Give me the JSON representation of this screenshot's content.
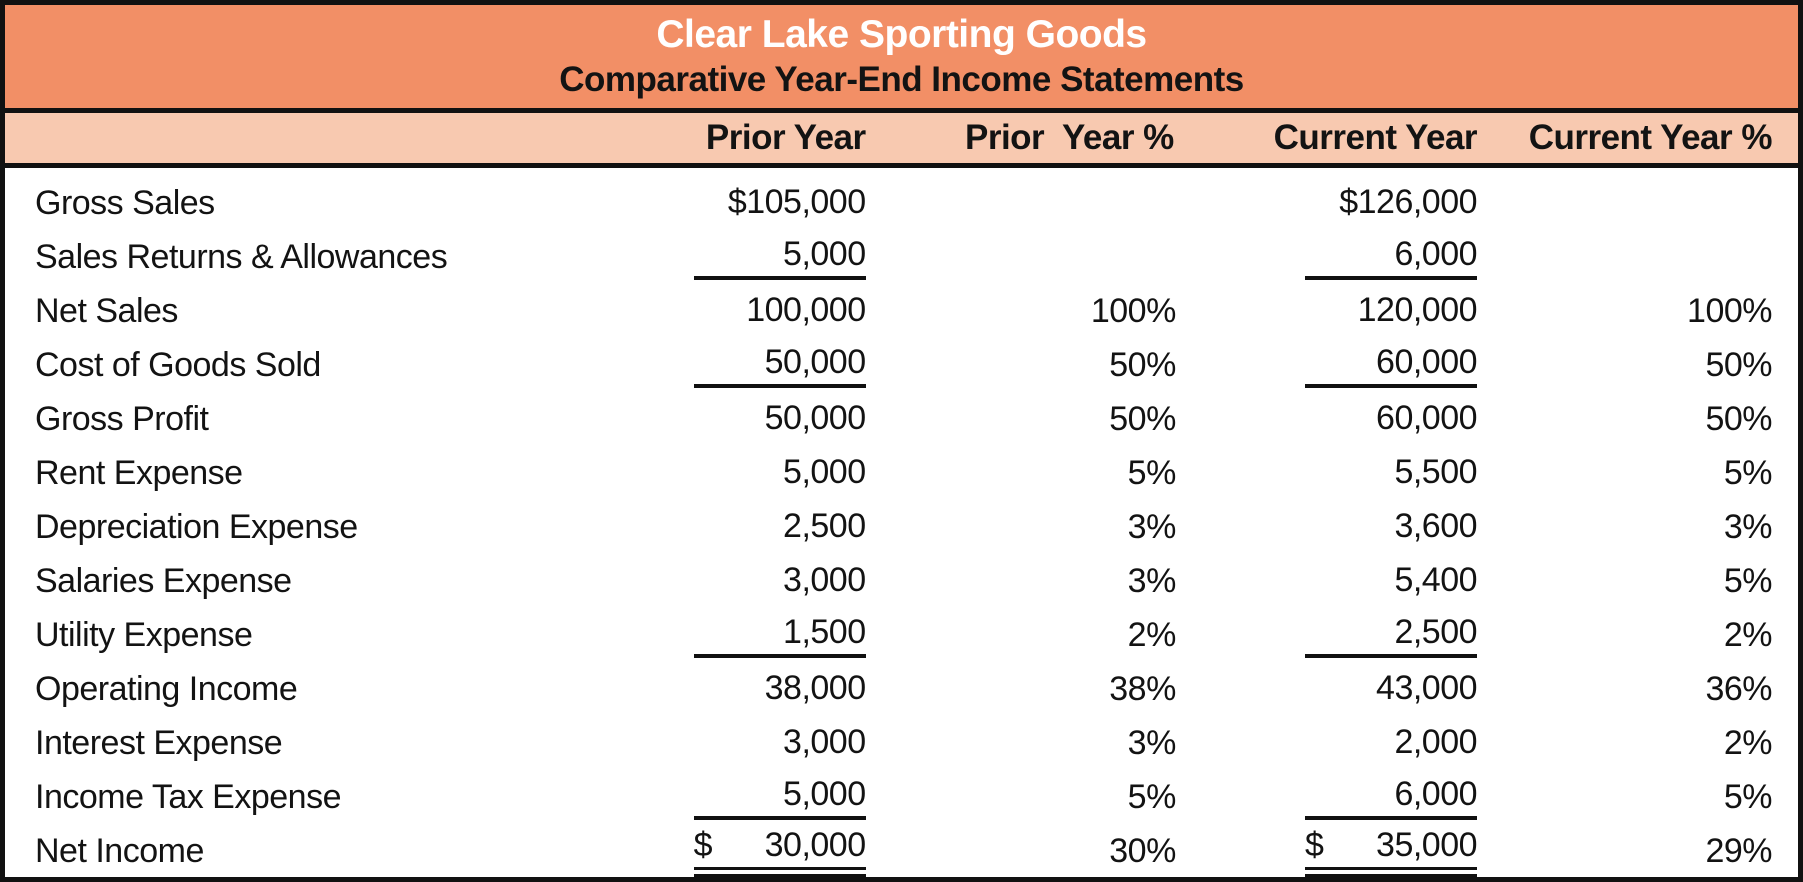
{
  "header": {
    "title": "Clear Lake Sporting Goods",
    "subtitle": "Comparative Year-End Income Statements"
  },
  "columns": {
    "prior": "Prior Year",
    "prior_pct": "Prior  Year %",
    "current": "Current Year",
    "current_pct": "Current Year %"
  },
  "rows": [
    {
      "label": "Gross Sales",
      "prior": "$105,000",
      "prior_pct": "",
      "current": "$126,000",
      "current_pct": "",
      "underline": "none"
    },
    {
      "label": "Sales Returns & Allowances",
      "prior": "5,000",
      "prior_pct": "",
      "current": "6,000",
      "current_pct": "",
      "underline": "single"
    },
    {
      "label": "Net Sales",
      "prior": "100,000",
      "prior_pct": "100%",
      "current": "120,000",
      "current_pct": "100%",
      "underline": "none"
    },
    {
      "label": "Cost of Goods Sold",
      "prior": "50,000",
      "prior_pct": "50%",
      "current": "60,000",
      "current_pct": "50%",
      "underline": "single"
    },
    {
      "label": "Gross Profit",
      "prior": "50,000",
      "prior_pct": "50%",
      "current": "60,000",
      "current_pct": "50%",
      "underline": "none"
    },
    {
      "label": "Rent Expense",
      "prior": "5,000",
      "prior_pct": "5%",
      "current": "5,500",
      "current_pct": "5%",
      "underline": "none"
    },
    {
      "label": "Depreciation Expense",
      "prior": "2,500",
      "prior_pct": "3%",
      "current": "3,600",
      "current_pct": "3%",
      "underline": "none"
    },
    {
      "label": "Salaries Expense",
      "prior": "3,000",
      "prior_pct": "3%",
      "current": "5,400",
      "current_pct": "5%",
      "underline": "none"
    },
    {
      "label": "Utility Expense",
      "prior": "1,500",
      "prior_pct": "2%",
      "current": "2,500",
      "current_pct": "2%",
      "underline": "single"
    },
    {
      "label": "Operating Income",
      "prior": "38,000",
      "prior_pct": "38%",
      "current": "43,000",
      "current_pct": "36%",
      "underline": "none"
    },
    {
      "label": "Interest Expense",
      "prior": "3,000",
      "prior_pct": "3%",
      "current": "2,000",
      "current_pct": "2%",
      "underline": "none"
    },
    {
      "label": "Income Tax Expense",
      "prior": "5,000",
      "prior_pct": "5%",
      "current": "6,000",
      "current_pct": "5%",
      "underline": "single"
    },
    {
      "label": "Net Income",
      "prior": "$ 30,000",
      "prior_pct": "30%",
      "current": "$ 35,000",
      "current_pct": "29%",
      "underline": "double"
    }
  ],
  "colors": {
    "band_orange": "#F28F66",
    "header_peach": "#F8C9B0",
    "border_black": "#111111",
    "title_text": "#FFFFFF",
    "body_text": "#131313"
  }
}
